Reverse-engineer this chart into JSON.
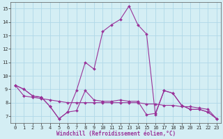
{
  "title": "",
  "xlabel": "Windchill (Refroidissement éolien,°C)",
  "ylabel": "",
  "bg_color": "#d4eef4",
  "line_color": "#993399",
  "grid_color": "#b0d8e8",
  "xlim": [
    -0.5,
    23.5
  ],
  "ylim": [
    6.5,
    15.5
  ],
  "yticks": [
    7,
    8,
    9,
    10,
    11,
    12,
    13,
    14,
    15
  ],
  "xticks": [
    0,
    1,
    2,
    3,
    4,
    5,
    6,
    7,
    8,
    9,
    10,
    11,
    12,
    13,
    14,
    15,
    16,
    17,
    18,
    19,
    20,
    21,
    22,
    23
  ],
  "series": [
    [
      9.3,
      9.0,
      8.5,
      8.4,
      7.7,
      6.8,
      7.3,
      7.4,
      8.9,
      8.2,
      8.1,
      8.1,
      8.2,
      8.1,
      8.1,
      7.1,
      7.2,
      8.9,
      8.7,
      7.8,
      7.5,
      7.5,
      7.3,
      6.8
    ],
    [
      9.3,
      9.0,
      8.5,
      8.4,
      7.7,
      6.8,
      7.3,
      8.9,
      11.0,
      10.5,
      13.3,
      13.8,
      14.2,
      15.2,
      13.8,
      13.1,
      7.1,
      8.9,
      8.7,
      7.8,
      7.5,
      7.5,
      7.3,
      6.8
    ],
    [
      9.3,
      8.5,
      8.4,
      8.3,
      8.2,
      8.1,
      8.0,
      8.0,
      8.0,
      8.0,
      8.0,
      8.0,
      8.0,
      8.0,
      8.0,
      7.9,
      7.9,
      7.8,
      7.8,
      7.7,
      7.7,
      7.6,
      7.5,
      6.8
    ]
  ],
  "tick_fontsize": 5.0,
  "xlabel_fontsize": 5.5,
  "marker_size": 2.0
}
